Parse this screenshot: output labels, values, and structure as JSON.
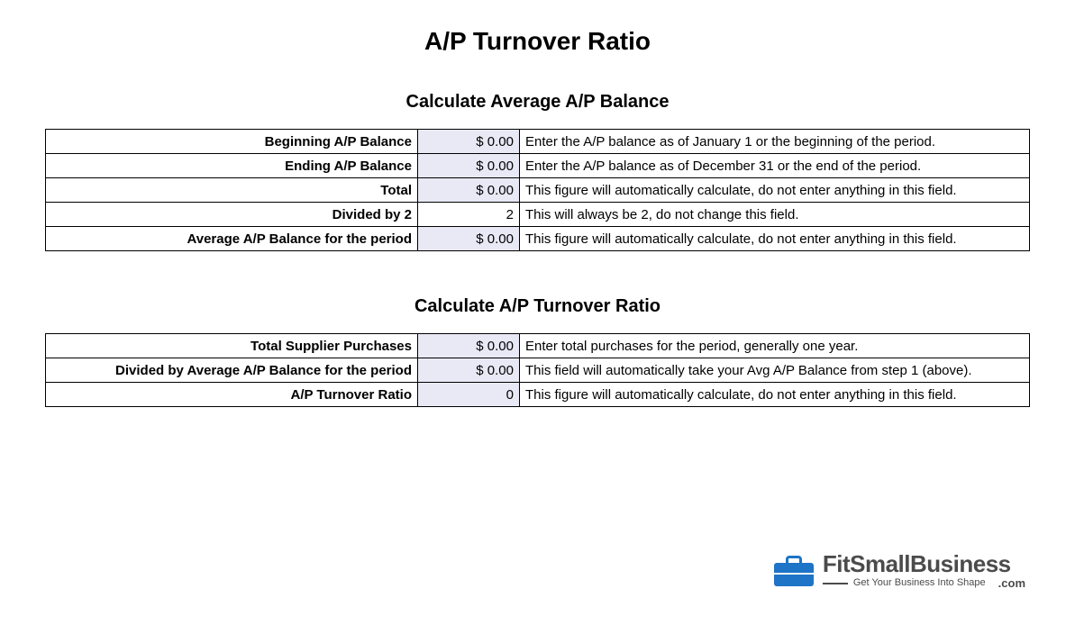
{
  "title": "A/P Turnover Ratio",
  "section1": {
    "heading": "Calculate Average A/P Balance",
    "rows": [
      {
        "label": "Beginning A/P Balance",
        "value": "$ 0.00",
        "shaded": true,
        "desc": "Enter the A/P balance as of January 1 or the beginning of the period."
      },
      {
        "label": "Ending A/P Balance",
        "value": "$ 0.00",
        "shaded": true,
        "desc": "Enter the A/P balance as of December 31 or the end of the period."
      },
      {
        "label": "Total",
        "value": "$ 0.00",
        "shaded": true,
        "desc": "This figure will automatically calculate, do not enter anything in this field."
      },
      {
        "label": "Divided by 2",
        "value": "2",
        "shaded": false,
        "desc": "This will always be 2, do not change this field."
      },
      {
        "label": "Average A/P Balance for the period",
        "value": "$ 0.00",
        "shaded": true,
        "desc": "This figure will automatically calculate, do not enter anything in this field."
      }
    ]
  },
  "section2": {
    "heading": "Calculate A/P Turnover Ratio",
    "rows": [
      {
        "label": "Total Supplier Purchases",
        "value": "$ 0.00",
        "shaded": true,
        "desc": "Enter total purchases for the period, generally one year."
      },
      {
        "label": "Divided by Average A/P Balance for the period",
        "value": "$ 0.00",
        "shaded": true,
        "desc": "This field will automatically take your Avg A/P Balance from step 1 (above)."
      },
      {
        "label": "A/P Turnover Ratio",
        "value": "0",
        "shaded": true,
        "desc": "This figure will automatically calculate, do not enter anything in this field."
      }
    ]
  },
  "logo": {
    "brand": "FitSmallBusiness",
    "tagline": "Get Your Business Into Shape",
    "dotcom": ".com",
    "briefcase_color": "#1e74c6",
    "text_color": "#4b4b4b"
  },
  "styles": {
    "shaded_bg": "#e8e9f5",
    "border_color": "#000000",
    "background": "#ffffff",
    "title_fontsize": 28,
    "section_fontsize": 20,
    "cell_fontsize": 15,
    "col_widths": {
      "label": 400,
      "value": 100
    }
  }
}
